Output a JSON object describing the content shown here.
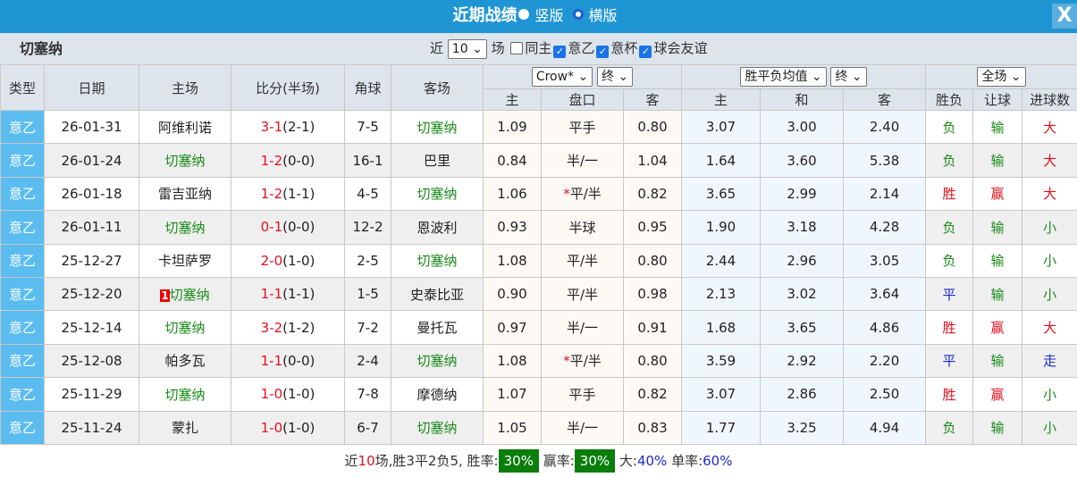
{
  "title": {
    "text": "近期战绩",
    "opt_vertical": "竖版",
    "opt_horizontal": "横版",
    "selected": "横版",
    "close": "X"
  },
  "filter": {
    "team": "切塞纳",
    "near_label": "近",
    "count": "10",
    "count_unit": "场",
    "options": [
      {
        "label": "同主",
        "checked": false
      },
      {
        "label": "意乙",
        "checked": true
      },
      {
        "label": "意杯",
        "checked": true
      },
      {
        "label": "球会友谊",
        "checked": true
      }
    ]
  },
  "headers": {
    "type": "类型",
    "date": "日期",
    "home": "主场",
    "score": "比分(半场)",
    "corner": "角球",
    "away": "客场",
    "ah_company": "Crow*",
    "ah_stage": "终",
    "eu_type": "胜平负均值",
    "eu_stage": "终",
    "scope": "全场",
    "sub": [
      "主",
      "盘口",
      "客",
      "主",
      "和",
      "客",
      "胜负",
      "让球",
      "进球数"
    ]
  },
  "rows": [
    {
      "type": "意乙",
      "date": "26-01-31",
      "home": "阿维利诺",
      "score": "3-1",
      "half": "(2-1)",
      "corner": "7-5",
      "away": "切塞纳",
      "ah_h": "1.09",
      "line": "平手",
      "ah_a": "0.80",
      "eu_h": "3.07",
      "eu_d": "3.00",
      "eu_a": "2.40",
      "wl": "负",
      "ah_r": "输",
      "ou": "大"
    },
    {
      "type": "意乙",
      "date": "26-01-24",
      "home": "切塞纳",
      "score": "1-2",
      "half": "(0-0)",
      "corner": "16-1",
      "away": "巴里",
      "ah_h": "0.84",
      "line": "半/一",
      "ah_a": "1.04",
      "eu_h": "1.64",
      "eu_d": "3.60",
      "eu_a": "5.38",
      "wl": "负",
      "ah_r": "输",
      "ou": "大"
    },
    {
      "type": "意乙",
      "date": "26-01-18",
      "home": "雷吉亚纳",
      "score": "1-2",
      "half": "(1-1)",
      "corner": "4-5",
      "away": "切塞纳",
      "ah_h": "1.06",
      "line_star": "*",
      "line": "平/半",
      "ah_a": "0.82",
      "eu_h": "3.65",
      "eu_d": "2.99",
      "eu_a": "2.14",
      "wl": "胜",
      "ah_r": "赢",
      "ou": "大"
    },
    {
      "type": "意乙",
      "date": "26-01-11",
      "home": "切塞纳",
      "score": "0-1",
      "half": "(0-0)",
      "corner": "12-2",
      "away": "恩波利",
      "ah_h": "0.93",
      "line": "半球",
      "ah_a": "0.95",
      "eu_h": "1.90",
      "eu_d": "3.18",
      "eu_a": "4.28",
      "wl": "负",
      "ah_r": "输",
      "ou": "小"
    },
    {
      "type": "意乙",
      "date": "25-12-27",
      "home": "卡坦萨罗",
      "score": "2-0",
      "half": "(1-0)",
      "corner": "2-5",
      "away": "切塞纳",
      "ah_h": "1.08",
      "line": "平/半",
      "ah_a": "0.80",
      "eu_h": "2.44",
      "eu_d": "2.96",
      "eu_a": "3.05",
      "wl": "负",
      "ah_r": "输",
      "ou": "小"
    },
    {
      "type": "意乙",
      "date": "25-12-20",
      "home_rank": "1",
      "home": "切塞纳",
      "score": "1-1",
      "half": "(1-1)",
      "corner": "1-5",
      "away": "史泰比亚",
      "ah_h": "0.90",
      "line": "平/半",
      "ah_a": "0.98",
      "eu_h": "2.13",
      "eu_d": "3.02",
      "eu_a": "3.64",
      "wl": "平",
      "ah_r": "输",
      "ou": "小"
    },
    {
      "type": "意乙",
      "date": "25-12-14",
      "home": "切塞纳",
      "score": "3-2",
      "half": "(1-2)",
      "corner": "7-2",
      "away": "曼托瓦",
      "ah_h": "0.97",
      "line": "半/一",
      "ah_a": "0.91",
      "eu_h": "1.68",
      "eu_d": "3.65",
      "eu_a": "4.86",
      "wl": "胜",
      "ah_r": "赢",
      "ou": "大"
    },
    {
      "type": "意乙",
      "date": "25-12-08",
      "home": "帕多瓦",
      "score": "1-1",
      "half": "(0-0)",
      "corner": "2-4",
      "away": "切塞纳",
      "ah_h": "1.08",
      "line_star": "*",
      "line": "平/半",
      "ah_a": "0.80",
      "eu_h": "3.59",
      "eu_d": "2.92",
      "eu_a": "2.20",
      "wl": "平",
      "ah_r": "输",
      "ou": "走"
    },
    {
      "type": "意乙",
      "date": "25-11-29",
      "home": "切塞纳",
      "score": "1-0",
      "half": "(1-0)",
      "corner": "7-8",
      "away": "摩德纳",
      "ah_h": "1.07",
      "line": "平手",
      "ah_a": "0.82",
      "eu_h": "3.07",
      "eu_d": "2.86",
      "eu_a": "2.50",
      "wl": "胜",
      "ah_r": "赢",
      "ou": "小"
    },
    {
      "type": "意乙",
      "date": "25-11-24",
      "home": "蒙扎",
      "score": "1-0",
      "half": "(1-0)",
      "corner": "6-7",
      "away": "切塞纳",
      "ah_h": "1.05",
      "line": "半/一",
      "ah_a": "0.83",
      "eu_h": "1.77",
      "eu_d": "3.25",
      "eu_a": "4.94",
      "wl": "负",
      "ah_r": "输",
      "ou": "小"
    }
  ],
  "footer": {
    "p1": "近",
    "n": "10",
    "p2": "场,胜3平2负5, 胜率:",
    "win_rate": "30%",
    "p3": " 赢率:",
    "ah_rate": "30%",
    "p4": " 大:",
    "big_rate": "40%",
    "p5": " 单率:",
    "odd_rate": "60%"
  },
  "colors": {
    "titlebar": "#1f95d4",
    "team": "#1a8a1a",
    "win": "#e01020",
    "draw": "#1a2ad0",
    "lose": "#1a8a1a",
    "rate_bg": "#0a7d0a"
  }
}
